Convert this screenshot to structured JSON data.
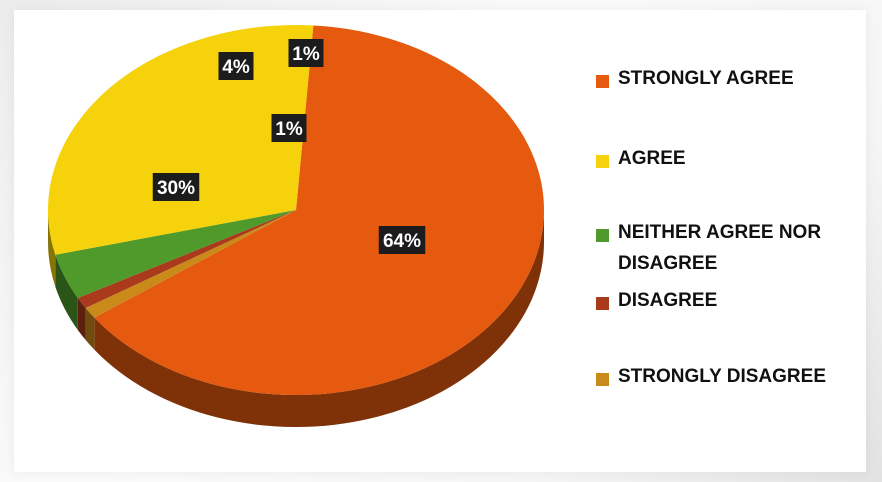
{
  "chart_data": {
    "type": "pie",
    "title": "",
    "categories": [
      "STRONGLY AGREE",
      "AGREE",
      "NEITHER AGREE NOR DISAGREE",
      "DISAGREE",
      "STRONGLY DISAGREE"
    ],
    "values": [
      64,
      30,
      4,
      1,
      1
    ],
    "data_labels": [
      "64%",
      "30%",
      "4%",
      "1%",
      "1%"
    ],
    "colors": [
      "#e65a0f",
      "#f6d20c",
      "#4f9a2a",
      "#a93a1c",
      "#c98a1a"
    ],
    "legend": {
      "position": "right",
      "entries": [
        "STRONGLY AGREE",
        "AGREE",
        "NEITHER AGREE NOR DISAGREE",
        "DISAGREE",
        "STRONGLY DISAGREE"
      ]
    },
    "style": "3d"
  }
}
